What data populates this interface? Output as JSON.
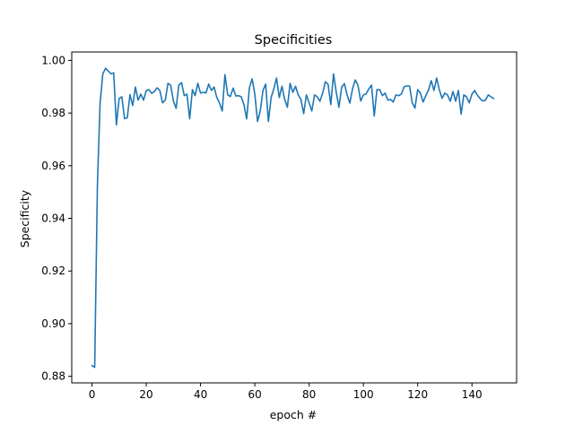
{
  "chart_data": {
    "type": "line",
    "title": "Specificities",
    "xlabel": "epoch #",
    "ylabel": "Specificity",
    "xlim": [
      -7.45,
      156.45
    ],
    "ylim": [
      0.8775,
      1.0032
    ],
    "x_ticks": [
      "0",
      "20",
      "40",
      "60",
      "80",
      "100",
      "120",
      "140"
    ],
    "y_ticks": [
      "0.88",
      "0.90",
      "0.92",
      "0.94",
      "0.96",
      "0.98",
      "1.00"
    ],
    "grid": false,
    "legend": "none",
    "series": [
      {
        "color": "#1f77b4",
        "x_start": 0,
        "values": [
          0.8841,
          0.8834,
          0.9526,
          0.9839,
          0.9949,
          0.997,
          0.996,
          0.9949,
          0.9953,
          0.9755,
          0.9855,
          0.9862,
          0.9779,
          0.9782,
          0.987,
          0.9829,
          0.9899,
          0.9849,
          0.9872,
          0.9849,
          0.9886,
          0.9889,
          0.9875,
          0.9882,
          0.9896,
          0.9886,
          0.9839,
          0.9849,
          0.9913,
          0.9906,
          0.9846,
          0.9818,
          0.9906,
          0.9916,
          0.9866,
          0.9872,
          0.9778,
          0.9889,
          0.9866,
          0.9913,
          0.9876,
          0.9879,
          0.9876,
          0.991,
          0.9886,
          0.9899,
          0.9859,
          0.9838,
          0.9808,
          0.9946,
          0.9869,
          0.9863,
          0.9895,
          0.9865,
          0.9866,
          0.9862,
          0.9832,
          0.9778,
          0.9896,
          0.993,
          0.9872,
          0.9768,
          0.9808,
          0.9886,
          0.991,
          0.9768,
          0.9859,
          0.9892,
          0.9933,
          0.9859,
          0.9902,
          0.9852,
          0.9822,
          0.9913,
          0.9879,
          0.9902,
          0.9869,
          0.9852,
          0.9798,
          0.9869,
          0.9839,
          0.9808,
          0.9869,
          0.9862,
          0.9845,
          0.9876,
          0.9919,
          0.9909,
          0.9832,
          0.9949,
          0.9879,
          0.9822,
          0.9899,
          0.9912,
          0.9869,
          0.9838,
          0.9892,
          0.9926,
          0.9906,
          0.9846,
          0.9869,
          0.9873,
          0.9892,
          0.9906,
          0.9789,
          0.9889,
          0.9889,
          0.9866,
          0.9876,
          0.9849,
          0.9852,
          0.9842,
          0.9869,
          0.9866,
          0.9872,
          0.99,
          0.9903,
          0.9903,
          0.9839,
          0.9819,
          0.9889,
          0.9876,
          0.9842,
          0.9866,
          0.9888,
          0.9923,
          0.9886,
          0.9933,
          0.9888,
          0.9856,
          0.9876,
          0.9869,
          0.9845,
          0.9882,
          0.9845,
          0.9886,
          0.9796,
          0.9869,
          0.9862,
          0.9839,
          0.9872,
          0.9886,
          0.9868,
          0.9855,
          0.9846,
          0.9849,
          0.9869,
          0.9862,
          0.9855
        ]
      }
    ]
  }
}
